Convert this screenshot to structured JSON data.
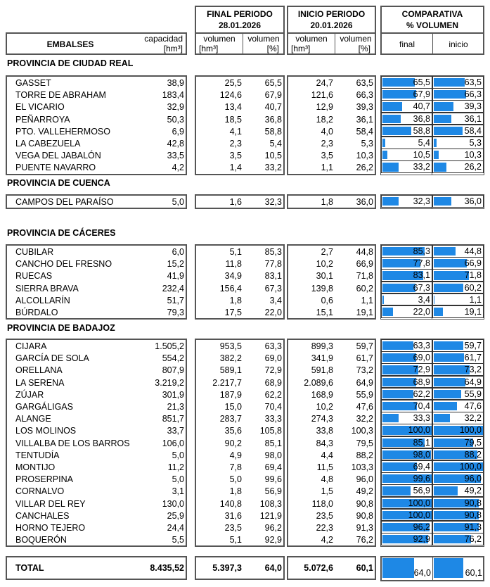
{
  "header": {
    "embalses": "EMBALSES",
    "capacidad": "capacidad",
    "capacidad_unit": "[hm³]",
    "final_periodo": "FINAL PERIODO",
    "final_date": "28.01.2026",
    "inicio_periodo": "INICIO PERIODO",
    "inicio_date": "20.01.2026",
    "volumen": "volumen",
    "unit_hm3": "[hm³]",
    "unit_pct": "[%]",
    "comparativa": "COMPARATIVA",
    "pct_volumen": "% VOLUMEN",
    "final": "final",
    "inicio": "inicio"
  },
  "bar_color": "#1e88e5",
  "sections": [
    {
      "title": "PROVINCIA DE CIUDAD REAL",
      "rows": [
        [
          "GASSET",
          "38,9",
          "25,5",
          "65,5",
          "24,7",
          "63,5",
          "65,5",
          "63,5"
        ],
        [
          "TORRE DE ABRAHAM",
          "183,4",
          "124,6",
          "67,9",
          "121,6",
          "66,3",
          "67,9",
          "66,3"
        ],
        [
          "EL VICARIO",
          "32,9",
          "13,4",
          "40,7",
          "12,9",
          "39,3",
          "40,7",
          "39,3"
        ],
        [
          "PEÑARROYA",
          "50,3",
          "18,5",
          "36,8",
          "18,2",
          "36,1",
          "36,8",
          "36,1"
        ],
        [
          "PTO. VALLEHERMOSO",
          "6,9",
          "4,1",
          "58,8",
          "4,0",
          "58,4",
          "58,8",
          "58,4"
        ],
        [
          "LA CABEZUELA",
          "42,8",
          "2,3",
          "5,4",
          "2,3",
          "5,3",
          "5,4",
          "5,3"
        ],
        [
          "VEGA DEL JABALÓN",
          "33,5",
          "3,5",
          "10,5",
          "3,5",
          "10,3",
          "10,5",
          "10,3"
        ],
        [
          "PUENTE NAVARRO",
          "4,2",
          "1,4",
          "33,2",
          "1,1",
          "26,2",
          "33,2",
          "26,2"
        ]
      ]
    },
    {
      "title": "PROVINCIA DE CUENCA",
      "rows": [
        [
          "CAMPOS DEL PARAÍSO",
          "5,0",
          "1,6",
          "32,3",
          "1,8",
          "36,0",
          "32,3",
          "36,0"
        ]
      ]
    },
    {
      "title": "PROVINCIA DE CÁCERES",
      "rows": [
        [
          "CUBILAR",
          "6,0",
          "5,1",
          "85,3",
          "2,7",
          "44,8",
          "85,3",
          "44,8"
        ],
        [
          "CANCHO DEL FRESNO",
          "15,2",
          "11,8",
          "77,8",
          "10,2",
          "66,9",
          "77,8",
          "66,9"
        ],
        [
          "RUECAS",
          "41,9",
          "34,9",
          "83,1",
          "30,1",
          "71,8",
          "83,1",
          "71,8"
        ],
        [
          "SIERRA BRAVA",
          "232,4",
          "156,4",
          "67,3",
          "139,8",
          "60,2",
          "67,3",
          "60,2"
        ],
        [
          "ALCOLLARÍN",
          "51,7",
          "1,8",
          "3,4",
          "0,6",
          "1,1",
          "3,4",
          "1,1"
        ],
        [
          "BÚRDALO",
          "79,3",
          "17,5",
          "22,0",
          "15,1",
          "19,1",
          "22,0",
          "19,1"
        ]
      ]
    },
    {
      "title": "PROVINCIA DE BADAJOZ",
      "rows": [
        [
          "CIJARA",
          "1.505,2",
          "953,5",
          "63,3",
          "899,3",
          "59,7",
          "63,3",
          "59,7"
        ],
        [
          "GARCÍA DE SOLA",
          "554,2",
          "382,2",
          "69,0",
          "341,9",
          "61,7",
          "69,0",
          "61,7"
        ],
        [
          "ORELLANA",
          "807,9",
          "589,1",
          "72,9",
          "591,8",
          "73,2",
          "72,9",
          "73,2"
        ],
        [
          "LA SERENA",
          "3.219,2",
          "2.217,7",
          "68,9",
          "2.089,6",
          "64,9",
          "68,9",
          "64,9"
        ],
        [
          "ZÚJAR",
          "301,9",
          "187,9",
          "62,2",
          "168,9",
          "55,9",
          "62,2",
          "55,9"
        ],
        [
          "GARGÁLIGAS",
          "21,3",
          "15,0",
          "70,4",
          "10,2",
          "47,6",
          "70,4",
          "47,6"
        ],
        [
          "ALANGE",
          "851,7",
          "283,7",
          "33,3",
          "274,3",
          "32,2",
          "33,3",
          "32,2"
        ],
        [
          "LOS MOLINOS",
          "33,7",
          "35,6",
          "105,8",
          "33,8",
          "100,3",
          "100,0",
          "100,0"
        ],
        [
          "VILLALBA DE LOS BARROS",
          "106,0",
          "90,2",
          "85,1",
          "84,3",
          "79,5",
          "85,1",
          "79,5"
        ],
        [
          "TENTUDÍA",
          "5,0",
          "4,9",
          "98,0",
          "4,4",
          "88,2",
          "98,0",
          "88,2"
        ],
        [
          "MONTIJO",
          "11,2",
          "7,8",
          "69,4",
          "11,5",
          "103,3",
          "69,4",
          "100,0"
        ],
        [
          "PROSERPINA",
          "5,0",
          "5,0",
          "99,6",
          "4,8",
          "96,0",
          "99,6",
          "96,0"
        ],
        [
          "CORNALVO",
          "3,1",
          "1,8",
          "56,9",
          "1,5",
          "49,2",
          "56,9",
          "49,2"
        ],
        [
          "VILLAR DEL REY",
          "130,0",
          "140,8",
          "108,3",
          "118,0",
          "90,8",
          "100,0",
          "90,8"
        ],
        [
          "CANCHALES",
          "25,9",
          "31,6",
          "121,9",
          "23,5",
          "90,8",
          "100,0",
          "90,8"
        ],
        [
          "HORNO TEJERO",
          "24,4",
          "23,5",
          "96,2",
          "22,3",
          "91,3",
          "96,2",
          "91,3"
        ],
        [
          "BOQUERÓN",
          "5,5",
          "5,1",
          "92,9",
          "4,2",
          "76,2",
          "92,9",
          "76,2"
        ]
      ]
    }
  ],
  "total": {
    "label": "TOTAL",
    "capacidad": "8.435,52",
    "vol_final": "5.397,3",
    "pct_final": "64,0",
    "vol_inicio": "5.072,6",
    "pct_inicio": "60,1",
    "bar_final": "64,0",
    "bar_inicio": "60,1"
  }
}
